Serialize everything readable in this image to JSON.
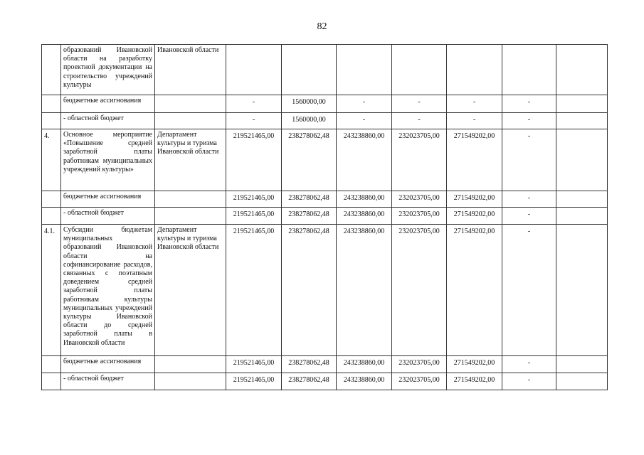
{
  "page_number": "82",
  "rows": [
    {
      "num": "",
      "name": "образований Ивановской области на разработку проектной документации на строительство учреждений культуры",
      "dept": "Ивановской области",
      "values": [
        "",
        "",
        "",
        "",
        "",
        "",
        ""
      ]
    },
    {
      "num": "",
      "name": "бюджетные ассигнования",
      "dept": "",
      "values": [
        "-",
        "1560000,00",
        "-",
        "-",
        "-",
        "-",
        ""
      ]
    },
    {
      "num": "",
      "name": "- областной бюджет",
      "dept": "",
      "values": [
        "-",
        "1560000,00",
        "-",
        "-",
        "-",
        "-",
        ""
      ]
    },
    {
      "num": "4.",
      "name": "Основное мероприятие «Повышение средней заработной платы работникам муниципальных учреждений культуры»",
      "dept": "Департамент культуры и туризма Ивановской области",
      "values": [
        "219521465,00",
        "238278062,48",
        "243238860,00",
        "232023705,00",
        "271549202,00",
        "-",
        ""
      ]
    },
    {
      "num": "",
      "name": "бюджетные ассигнования",
      "dept": "",
      "values": [
        "219521465,00",
        "238278062,48",
        "243238860,00",
        "232023705,00",
        "271549202,00",
        "-",
        ""
      ]
    },
    {
      "num": "",
      "name": "- областной бюджет",
      "dept": "",
      "values": [
        "219521465,00",
        "238278062,48",
        "243238860,00",
        "232023705,00",
        "271549202,00",
        "-",
        ""
      ]
    },
    {
      "num": "4.1.",
      "name": "Субсидии бюджетам муниципальных образований Ивановской области на софинансирование расходов, связанных с поэтапным доведением средней заработной платы работникам культуры муниципальных учреждений культуры Ивановской области до средней заработной платы в Ивановской области",
      "dept": "Департамент культуры и туризма Ивановской области",
      "values": [
        "219521465,00",
        "238278062,48",
        "243238860,00",
        "232023705,00",
        "271549202,00",
        "-",
        ""
      ]
    },
    {
      "num": "",
      "name": "бюджетные ассигнования",
      "dept": "",
      "values": [
        "219521465,00",
        "238278062,48",
        "243238860,00",
        "232023705,00",
        "271549202,00",
        "-",
        ""
      ]
    },
    {
      "num": "",
      "name": "- областной бюджет",
      "dept": "",
      "values": [
        "219521465,00",
        "238278062,48",
        "243238860,00",
        "232023705,00",
        "271549202,00",
        "-",
        ""
      ]
    }
  ]
}
